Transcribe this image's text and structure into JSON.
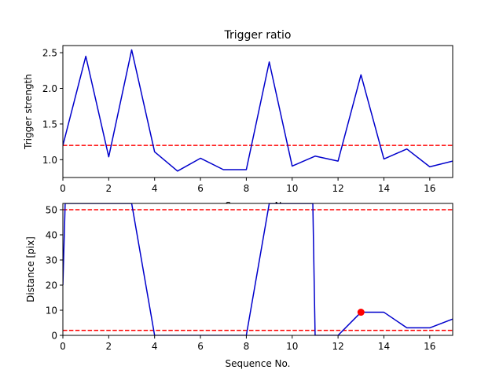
{
  "chart_data": [
    {
      "type": "line",
      "title": "Trigger ratio",
      "xlabel": "Sequence No.",
      "ylabel": "Trigger strength",
      "xlim": [
        0,
        17
      ],
      "ylim": [
        0.75,
        2.6
      ],
      "xticks": [
        0,
        2,
        4,
        6,
        8,
        10,
        12,
        14,
        16
      ],
      "yticks": [
        1.0,
        1.5,
        2.0,
        2.5
      ],
      "ytick_labels": [
        "1.0",
        "1.5",
        "2.0",
        "2.5"
      ],
      "grid": false,
      "series": [
        {
          "color": "#0000cc",
          "x": [
            0,
            1,
            2,
            3,
            4,
            5,
            6,
            7,
            8,
            9,
            10,
            11,
            12,
            13,
            14,
            15,
            16,
            17
          ],
          "y": [
            1.2,
            2.45,
            1.04,
            2.54,
            1.11,
            0.84,
            1.02,
            0.86,
            0.86,
            2.37,
            0.91,
            1.05,
            0.98,
            2.19,
            1.01,
            1.15,
            0.9,
            0.98
          ]
        }
      ],
      "hlines": [
        {
          "y": 1.2,
          "color": "#ff0000",
          "style": "dashed"
        }
      ]
    },
    {
      "type": "line",
      "title": "",
      "xlabel": "Sequence No.",
      "ylabel": "Distance [pix]",
      "xlim": [
        0,
        17
      ],
      "ylim": [
        0,
        52.5
      ],
      "xticks": [
        0,
        2,
        4,
        6,
        8,
        10,
        12,
        14,
        16
      ],
      "yticks": [
        0,
        10,
        20,
        30,
        40,
        50
      ],
      "ytick_labels": [
        "0",
        "10",
        "20",
        "30",
        "40",
        "50"
      ],
      "grid": false,
      "series": [
        {
          "color": "#0000cc",
          "x": [
            0,
            0.1,
            3,
            4,
            5,
            6,
            7,
            8,
            9,
            10.9,
            11,
            12,
            13,
            14,
            15,
            16,
            17
          ],
          "y": [
            20,
            52.5,
            52.5,
            0,
            0,
            0,
            0,
            0,
            52.5,
            52.5,
            0,
            0,
            9.2,
            9.2,
            3,
            3,
            6.5
          ]
        }
      ],
      "hlines": [
        {
          "y": 50,
          "color": "#ff0000",
          "style": "dashed"
        },
        {
          "y": 2,
          "color": "#ff0000",
          "style": "dashed"
        }
      ],
      "markers": [
        {
          "x": 13,
          "y": 9.2,
          "color": "#ff0000"
        }
      ]
    }
  ]
}
